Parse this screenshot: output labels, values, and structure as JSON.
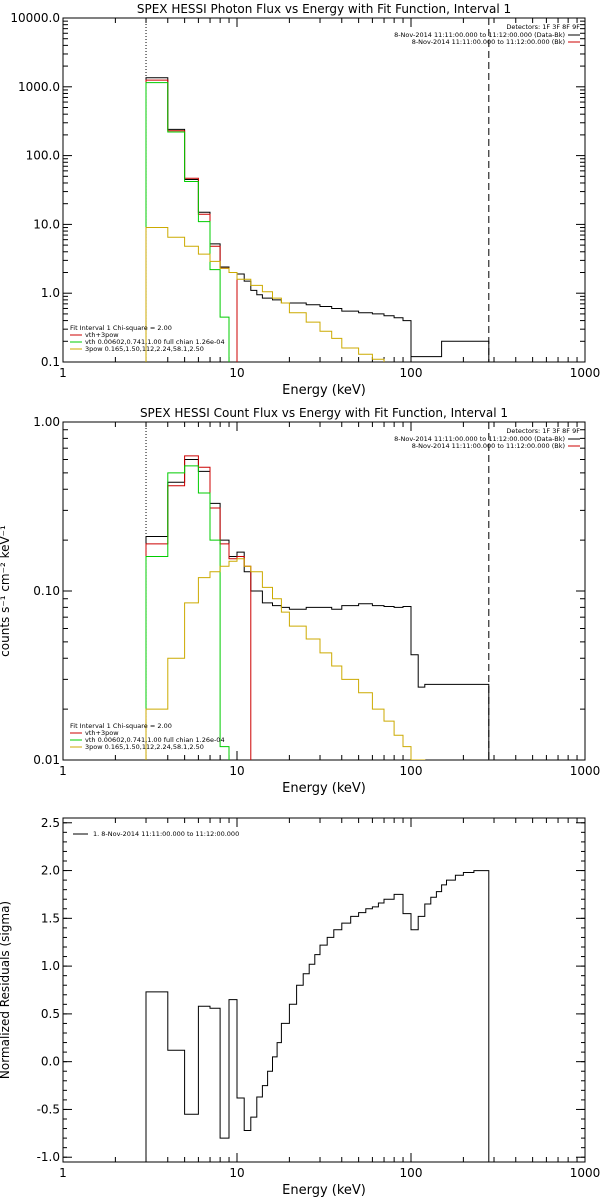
{
  "chart_data": [
    {
      "type": "line",
      "panel": "photon-flux",
      "title": "SPEX HESSI Photon Flux vs Energy with Fit Function, Interval 1",
      "xlabel": "Energy (keV)",
      "ylabel": "",
      "xscale": "log",
      "yscale": "log",
      "xlim": [
        1,
        1000
      ],
      "ylim": [
        0.1,
        10000
      ],
      "xticks": [
        1,
        10,
        100,
        1000
      ],
      "xtick_labels": [
        "1",
        "10",
        "100",
        "1000"
      ],
      "yticks": [
        0.1,
        1,
        10,
        100,
        1000,
        10000
      ],
      "ytick_labels": [
        "0.1",
        "1.0",
        "10.0",
        "100.0",
        "1000.0",
        "10000.0"
      ],
      "vlines": [
        {
          "x": 3,
          "style": "dotted"
        },
        {
          "x": 280,
          "style": "dashed"
        }
      ],
      "legend_top_right": {
        "header": "Detectors: 1F 3F 8F 9F",
        "entries": [
          {
            "label": "8-Nov-2014 11:11:00.000 to 11:12:00.000 (Data-Bk)",
            "color": "#000000"
          },
          {
            "label": "8-Nov-2014 11:11:00.000 to 11:12:00.000 (Bk)",
            "color": "#cc0000"
          }
        ]
      },
      "legend_bottom_left": {
        "header": "Fit Interval 1   Chi-square = 2.00",
        "entries": [
          {
            "label": "vth+3pow",
            "color": "#cc0000"
          },
          {
            "label": "vth 0.00602,0.741,1.00   full chian 1.26e-04",
            "color": "#00cc00"
          },
          {
            "label": "3pow 0.165,1.50,112,2.24,58.1,2.50",
            "color": "#ccaa00"
          }
        ]
      },
      "series": [
        {
          "name": "Data-Bk",
          "color": "#000000",
          "style": "step",
          "edges": [
            3,
            4,
            5,
            6,
            7,
            8,
            9,
            10,
            11,
            12,
            13,
            14,
            16,
            18,
            20,
            25,
            30,
            35,
            40,
            50,
            60,
            70,
            80,
            90,
            100,
            110,
            150,
            280
          ],
          "values": [
            1350,
            240,
            45,
            15,
            5.2,
            2.4,
            2.0,
            1.9,
            1.5,
            1.1,
            0.95,
            0.85,
            0.8,
            0.72,
            0.72,
            0.68,
            0.64,
            0.6,
            0.55,
            0.52,
            0.5,
            0.47,
            0.44,
            0.4,
            0.12,
            0.12,
            0.2
          ]
        },
        {
          "name": "vth+3pow",
          "color": "#cc0000",
          "style": "step",
          "edges": [
            3,
            4,
            5,
            6,
            7,
            8,
            9,
            10
          ],
          "values": [
            1250,
            230,
            47,
            14,
            4.8,
            2.3,
            2.0
          ]
        },
        {
          "name": "vth",
          "color": "#00cc00",
          "style": "step",
          "edges": [
            3,
            4,
            5,
            6,
            7,
            8,
            9
          ],
          "values": [
            1150,
            220,
            42,
            11,
            2.2,
            0.45
          ]
        },
        {
          "name": "3pow",
          "color": "#ccaa00",
          "style": "step",
          "edges": [
            3,
            4,
            5,
            6,
            7,
            8,
            9,
            10,
            12,
            14,
            16,
            18,
            20,
            25,
            30,
            35,
            40,
            50,
            60,
            70
          ],
          "values": [
            9.0,
            6.5,
            4.8,
            3.7,
            2.9,
            2.3,
            2.0,
            1.6,
            1.3,
            1.05,
            0.85,
            0.72,
            0.52,
            0.38,
            0.28,
            0.22,
            0.16,
            0.13,
            0.11
          ]
        }
      ]
    },
    {
      "type": "line",
      "panel": "count-flux",
      "title": "SPEX HESSI Count Flux vs Energy with Fit Function, Interval 1",
      "xlabel": "Energy (keV)",
      "ylabel": "counts s⁻¹ cm⁻² keV⁻¹",
      "xscale": "log",
      "yscale": "log",
      "xlim": [
        1,
        1000
      ],
      "ylim": [
        0.01,
        1.0
      ],
      "xticks": [
        1,
        10,
        100,
        1000
      ],
      "xtick_labels": [
        "1",
        "10",
        "100",
        "1000"
      ],
      "yticks": [
        0.01,
        0.1,
        1.0
      ],
      "ytick_labels": [
        "0.01",
        "0.10",
        "1.00"
      ],
      "vlines": [
        {
          "x": 3,
          "style": "dotted"
        },
        {
          "x": 280,
          "style": "dashed"
        }
      ],
      "legend_top_right": {
        "header": "Detectors: 1F 3F 8F 9F",
        "entries": [
          {
            "label": "8-Nov-2014 11:11:00.000 to 11:12:00.000 (Data-Bk)",
            "color": "#000000"
          },
          {
            "label": "8-Nov-2014 11:11:00.000 to 11:12:00.000 (Bk)",
            "color": "#cc0000"
          }
        ]
      },
      "legend_bottom_left": {
        "header": "Fit Interval 1   Chi-square = 2.00",
        "entries": [
          {
            "label": "vth+3pow",
            "color": "#cc0000"
          },
          {
            "label": "vth 0.00602,0.741,1.00   full chian 1.26e-04",
            "color": "#00cc00"
          },
          {
            "label": "3pow 0.165,1.50,112,2.24,58.1,2.50",
            "color": "#ccaa00"
          }
        ]
      },
      "series": [
        {
          "name": "Data-Bk",
          "color": "#000000",
          "style": "step",
          "edges": [
            3,
            4,
            5,
            6,
            7,
            8,
            9,
            10,
            11,
            12,
            14,
            16,
            18,
            20,
            25,
            30,
            35,
            40,
            50,
            60,
            70,
            80,
            90,
            100,
            110,
            120,
            150,
            280
          ],
          "values": [
            0.21,
            0.44,
            0.6,
            0.51,
            0.33,
            0.2,
            0.16,
            0.17,
            0.13,
            0.1,
            0.085,
            0.082,
            0.08,
            0.078,
            0.08,
            0.08,
            0.078,
            0.082,
            0.084,
            0.082,
            0.081,
            0.08,
            0.081,
            0.042,
            0.027,
            0.028,
            0.028
          ]
        },
        {
          "name": "vth+3pow",
          "color": "#cc0000",
          "style": "step",
          "edges": [
            3,
            4,
            5,
            6,
            7,
            8,
            9,
            10,
            11,
            12
          ],
          "values": [
            0.19,
            0.42,
            0.63,
            0.54,
            0.31,
            0.19,
            0.155,
            0.16,
            0.14
          ]
        },
        {
          "name": "vth",
          "color": "#00cc00",
          "style": "step",
          "edges": [
            3,
            4,
            5,
            6,
            7,
            8,
            9
          ],
          "values": [
            0.16,
            0.5,
            0.55,
            0.38,
            0.2,
            0.012
          ]
        },
        {
          "name": "3pow",
          "color": "#ccaa00",
          "style": "step",
          "edges": [
            3,
            4,
            5,
            6,
            7,
            8,
            9,
            10,
            11,
            12,
            14,
            16,
            18,
            20,
            25,
            30,
            35,
            40,
            50,
            60,
            70,
            80,
            90,
            100,
            120
          ],
          "values": [
            0.02,
            0.04,
            0.085,
            0.12,
            0.13,
            0.14,
            0.15,
            0.155,
            0.14,
            0.13,
            0.105,
            0.09,
            0.075,
            0.062,
            0.052,
            0.043,
            0.036,
            0.03,
            0.025,
            0.02,
            0.017,
            0.014,
            0.012,
            0.01
          ]
        }
      ]
    },
    {
      "type": "line",
      "panel": "residuals",
      "title": "",
      "xlabel": "Energy (keV)",
      "ylabel": "Normalized Residuals (sigma)",
      "xscale": "log",
      "yscale": "linear",
      "xlim": [
        1,
        1000
      ],
      "ylim": [
        -1.05,
        2.55
      ],
      "xticks": [
        1,
        10,
        100,
        1000
      ],
      "xtick_labels": [
        "1",
        "10",
        "100",
        "1000"
      ],
      "yticks": [
        -1.0,
        -0.5,
        0.0,
        0.5,
        1.0,
        1.5,
        2.0,
        2.5
      ],
      "ytick_labels": [
        "-1.0",
        "-0.5",
        "0.0",
        "0.5",
        "1.0",
        "1.5",
        "2.0",
        "2.5"
      ],
      "legend_top_left": {
        "entries": [
          {
            "label": "1.  8-Nov-2014 11:11:00.000 to 11:12:00.000",
            "color": "#000000"
          }
        ]
      },
      "series": [
        {
          "name": "1.",
          "color": "#000000",
          "style": "step",
          "edges": [
            3,
            4,
            5,
            6,
            7,
            8,
            9,
            10,
            11,
            12,
            13,
            14,
            15,
            16,
            17,
            18,
            20,
            22,
            24,
            26,
            28,
            30,
            33,
            36,
            40,
            45,
            50,
            55,
            60,
            65,
            70,
            80,
            90,
            100,
            110,
            120,
            130,
            140,
            150,
            160,
            180,
            200,
            230,
            260,
            280
          ],
          "values": [
            0.73,
            0.12,
            -0.55,
            0.58,
            0.56,
            -0.8,
            0.65,
            -0.38,
            -0.72,
            -0.58,
            -0.37,
            -0.25,
            -0.1,
            0.05,
            0.2,
            0.4,
            0.6,
            0.8,
            0.92,
            1.02,
            1.12,
            1.22,
            1.3,
            1.38,
            1.45,
            1.52,
            1.56,
            1.6,
            1.62,
            1.66,
            1.7,
            1.75,
            1.55,
            1.38,
            1.52,
            1.65,
            1.72,
            1.78,
            1.85,
            1.9,
            1.95,
            1.98,
            2.0,
            2.0
          ]
        }
      ]
    }
  ]
}
